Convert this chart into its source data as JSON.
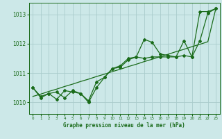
{
  "title": "Graphe pression niveau de la mer (hPa)",
  "background_color": "#cce8e8",
  "grid_color": "#aacccc",
  "line_color": "#1a6b1a",
  "x_values": [
    0,
    1,
    2,
    3,
    4,
    5,
    6,
    7,
    8,
    9,
    10,
    11,
    12,
    13,
    14,
    15,
    16,
    17,
    18,
    19,
    20,
    21,
    22,
    23
  ],
  "series1": [
    1010.5,
    1010.2,
    1010.3,
    1010.1,
    1010.4,
    1010.35,
    1010.3,
    1010.0,
    1010.5,
    1010.85,
    1011.15,
    1011.25,
    1011.5,
    1011.55,
    1012.15,
    1012.05,
    1011.65,
    1011.6,
    1011.55,
    1012.1,
    1011.55,
    1013.1,
    1013.1,
    1013.2
  ],
  "series2": [
    1010.5,
    1010.15,
    1010.3,
    1010.35,
    1010.15,
    1010.4,
    1010.3,
    1010.05,
    1010.7,
    1010.85,
    1011.15,
    1011.2,
    1011.45,
    1011.55,
    1011.5,
    1011.55,
    1011.55,
    1011.55,
    1011.55,
    1011.6,
    1011.55,
    1012.1,
    1013.05,
    1013.2
  ],
  "series3": [
    1010.2,
    1010.28,
    1010.37,
    1010.45,
    1010.54,
    1010.62,
    1010.71,
    1010.79,
    1010.88,
    1010.96,
    1011.05,
    1011.13,
    1011.22,
    1011.3,
    1011.39,
    1011.47,
    1011.56,
    1011.64,
    1011.73,
    1011.81,
    1011.9,
    1011.98,
    1012.07,
    1013.2
  ],
  "ylim": [
    1009.6,
    1013.4
  ],
  "yticks": [
    1010,
    1011,
    1012,
    1013
  ],
  "xlim": [
    -0.5,
    23.5
  ]
}
